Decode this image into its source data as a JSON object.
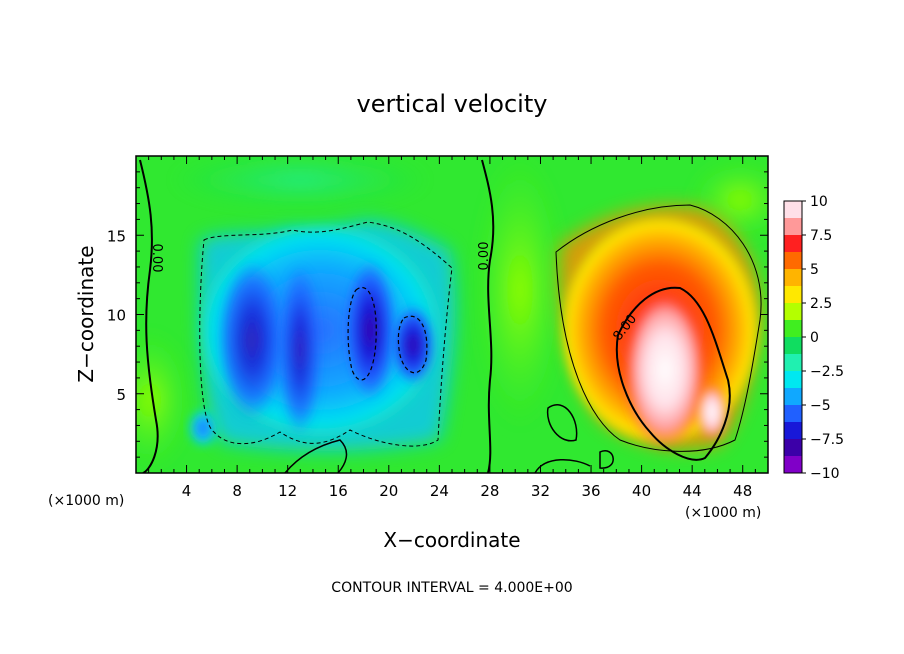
{
  "chart_data": {
    "type": "heatmap",
    "title": "vertical velocity",
    "xlabel": "X−coordinate",
    "ylabel": "Z−coordinate",
    "x_unit_left": "(×1000 m)",
    "x_unit_right": "(×1000 m)",
    "xlim": [
      0,
      50
    ],
    "ylim": [
      0,
      20
    ],
    "x_ticks": [
      "4",
      "8",
      "12",
      "16",
      "20",
      "24",
      "28",
      "32",
      "36",
      "40",
      "44",
      "48"
    ],
    "y_ticks": [
      "5",
      "10",
      "15"
    ],
    "colorbar": {
      "labels": [
        "10",
        "7.5",
        "5",
        "2.5",
        "0",
        "−2.5",
        "−5",
        "−7.5",
        "−10"
      ],
      "range": [
        -10,
        10
      ],
      "colors": [
        "#ffe0e8",
        "#ff9999",
        "#ff2020",
        "#ff6a00",
        "#ffb400",
        "#ffe800",
        "#b4ff00",
        "#40ee20",
        "#10dd60",
        "#20f0b0",
        "#00e8f0",
        "#10a8ff",
        "#2060ff",
        "#1818d8",
        "#3c00a8",
        "#8000c8"
      ]
    },
    "contour_labels": [
      "0.00",
      "0.00",
      "8.00"
    ],
    "contour_interval_label": "CONTOUR INTERVAL = 4.000E+00",
    "features": [
      {
        "sign": "negative",
        "x_range": [
          5,
          26
        ],
        "z_range": [
          1.5,
          15
        ],
        "min": -10
      },
      {
        "sign": "positive",
        "x_range": [
          35,
          50
        ],
        "z_range": [
          1,
          17
        ],
        "max": 10
      }
    ]
  }
}
